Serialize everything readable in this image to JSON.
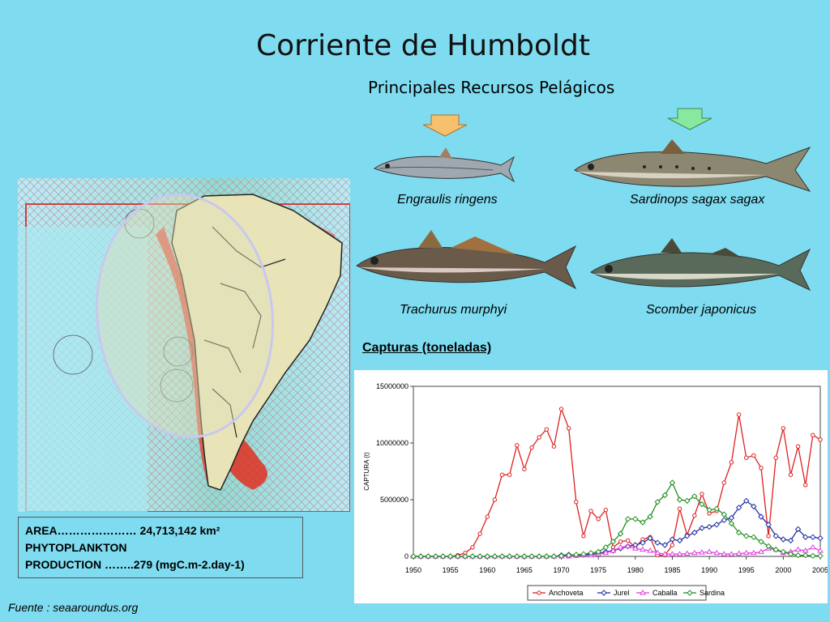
{
  "slide": {
    "title": "Corriente de Humboldt",
    "subtitle": "Principales Recursos Pelágicos",
    "arrow_colors": {
      "left": "#f5c16c",
      "right": "#88e8a0"
    }
  },
  "fish": [
    {
      "label": "Engraulis ringens",
      "icon": "anchovy"
    },
    {
      "label": "Sardinops sagax sagax",
      "icon": "sardine"
    },
    {
      "label": "Trachurus murphyi",
      "icon": "jack-mackerel"
    },
    {
      "label": "Scomber japonicus",
      "icon": "chub-mackerel"
    }
  ],
  "info": {
    "line1": "AREA………………… 24,713,142 km²",
    "line2": "PHYTOPLANKTON",
    "line3": "PRODUCTION ……..279 (mgC.m-2.day-1)"
  },
  "source": "Fuente : seaaroundus.org",
  "captures_label": "Capturas (toneladas)",
  "chart_data": {
    "type": "line",
    "ylabel": "CAPTURA (t)",
    "xlabel": "",
    "ylim": [
      0,
      15000000
    ],
    "yticks": [
      "0",
      "5000000",
      "10000000",
      "15000000"
    ],
    "xticks": [
      "1950",
      "1955",
      "1960",
      "1965",
      "1970",
      "1975",
      "1980",
      "1985",
      "1990",
      "1995",
      "2000",
      "2005"
    ],
    "x": [
      1950,
      1951,
      1952,
      1953,
      1954,
      1955,
      1956,
      1957,
      1958,
      1959,
      1960,
      1961,
      1962,
      1963,
      1964,
      1965,
      1966,
      1967,
      1968,
      1969,
      1970,
      1971,
      1972,
      1973,
      1974,
      1975,
      1976,
      1977,
      1978,
      1979,
      1980,
      1981,
      1982,
      1983,
      1984,
      1985,
      1986,
      1987,
      1988,
      1989,
      1990,
      1991,
      1992,
      1993,
      1994,
      1995,
      1996,
      1997,
      1998,
      1999,
      2000,
      2001,
      2002,
      2003,
      2004,
      2005
    ],
    "grid": false,
    "legend": "bottom",
    "series": [
      {
        "name": "Anchoveta",
        "color": "#e02020",
        "marker": "circle",
        "values": [
          0,
          0,
          0,
          0,
          0,
          0,
          100000,
          300000,
          800000,
          2000000,
          3500000,
          5000000,
          7200000,
          7200000,
          9800000,
          7700000,
          9600000,
          10500000,
          11200000,
          9700000,
          13000000,
          11300000,
          4800000,
          1800000,
          4000000,
          3300000,
          4100000,
          800000,
          1300000,
          1400000,
          800000,
          1500000,
          1700000,
          100000,
          100000,
          1000000,
          4200000,
          1900000,
          3600000,
          5500000,
          3800000,
          4000000,
          6500000,
          8300000,
          12500000,
          8700000,
          8900000,
          7800000,
          1800000,
          8700000,
          11300000,
          7200000,
          9700000,
          6300000,
          10700000,
          10300000
        ]
      },
      {
        "name": "Jurel",
        "color": "#2030a0",
        "marker": "diamond",
        "values": [
          0,
          0,
          0,
          0,
          0,
          0,
          0,
          0,
          0,
          0,
          0,
          0,
          0,
          0,
          0,
          0,
          0,
          0,
          0,
          0,
          100000,
          150000,
          100000,
          150000,
          200000,
          250000,
          400000,
          500000,
          700000,
          900000,
          1000000,
          1200000,
          1600000,
          1200000,
          1000000,
          1500000,
          1400000,
          1800000,
          2100000,
          2500000,
          2600000,
          2800000,
          3200000,
          3400000,
          4300000,
          4900000,
          4400000,
          3500000,
          2800000,
          1800000,
          1500000,
          1400000,
          2400000,
          1700000,
          1700000,
          1600000
        ]
      },
      {
        "name": "Caballa",
        "color": "#e040e0",
        "marker": "triangle",
        "values": [
          0,
          0,
          0,
          0,
          0,
          0,
          0,
          0,
          0,
          0,
          0,
          0,
          0,
          0,
          0,
          0,
          0,
          0,
          0,
          0,
          0,
          0,
          50000,
          100000,
          100000,
          200000,
          300000,
          500000,
          800000,
          900000,
          700000,
          600000,
          500000,
          300000,
          200000,
          200000,
          200000,
          250000,
          300000,
          350000,
          400000,
          300000,
          200000,
          200000,
          250000,
          300000,
          300000,
          400000,
          700000,
          600000,
          300000,
          400000,
          600000,
          500000,
          800000,
          500000
        ]
      },
      {
        "name": "Sardina",
        "color": "#209020",
        "marker": "diamond",
        "values": [
          0,
          0,
          0,
          0,
          0,
          0,
          0,
          0,
          0,
          0,
          0,
          0,
          0,
          0,
          0,
          0,
          0,
          0,
          0,
          0,
          50000,
          100000,
          150000,
          200000,
          300000,
          400000,
          800000,
          1300000,
          2000000,
          3300000,
          3300000,
          3000000,
          3500000,
          4800000,
          5400000,
          6500000,
          5000000,
          4900000,
          5300000,
          4600000,
          4100000,
          4200000,
          3700000,
          2900000,
          2100000,
          1800000,
          1700000,
          1300000,
          900000,
          600000,
          400000,
          200000,
          100000,
          100000,
          50000,
          50000
        ]
      }
    ]
  }
}
